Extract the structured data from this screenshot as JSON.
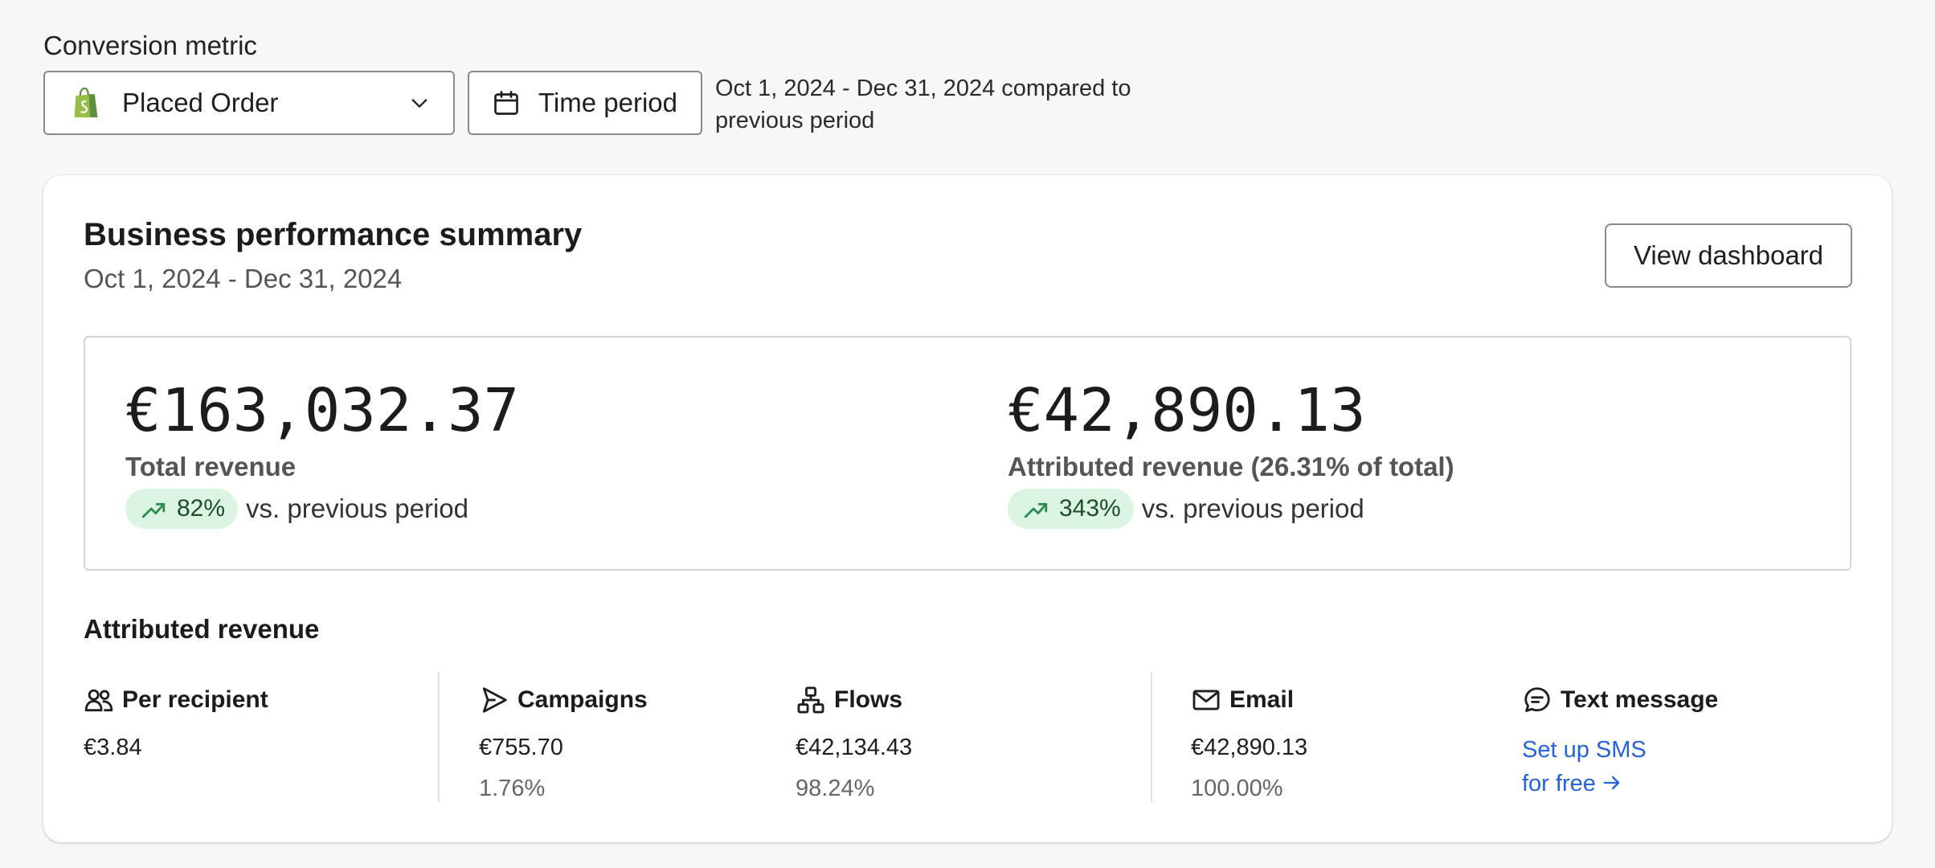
{
  "conversion_metric": {
    "label": "Conversion metric",
    "selected": "Placed Order"
  },
  "time_period": {
    "button_label": "Time period",
    "range_text": "Oct 1, 2024 - Dec 31, 2024 compared to previous period"
  },
  "summary": {
    "title": "Business performance summary",
    "date_range": "Oct 1, 2024 - Dec 31, 2024",
    "view_button": "View dashboard",
    "total": {
      "value": "€163,032.37",
      "label": "Total revenue",
      "change": "82%",
      "change_text": "vs. previous period"
    },
    "attributed": {
      "value": "€42,890.13",
      "label": "Attributed revenue (26.31% of total)",
      "change": "343%",
      "change_text": "vs. previous period"
    }
  },
  "attributed_revenue": {
    "heading": "Attributed revenue",
    "per_recipient": {
      "label": "Per recipient",
      "value": "€3.84"
    },
    "campaigns": {
      "label": "Campaigns",
      "value": "€755.70",
      "percent": "1.76%"
    },
    "flows": {
      "label": "Flows",
      "value": "€42,134.43",
      "percent": "98.24%"
    },
    "email": {
      "label": "Email",
      "value": "€42,890.13",
      "percent": "100.00%"
    },
    "text_message": {
      "label": "Text message",
      "link_line1": "Set up SMS",
      "link_line2": "for free"
    }
  },
  "colors": {
    "accent_link": "#2563d9",
    "trend_pill_bg": "#dcf5e3",
    "trend_icon": "#2e8b50",
    "shopify_green": "#95bf47"
  }
}
